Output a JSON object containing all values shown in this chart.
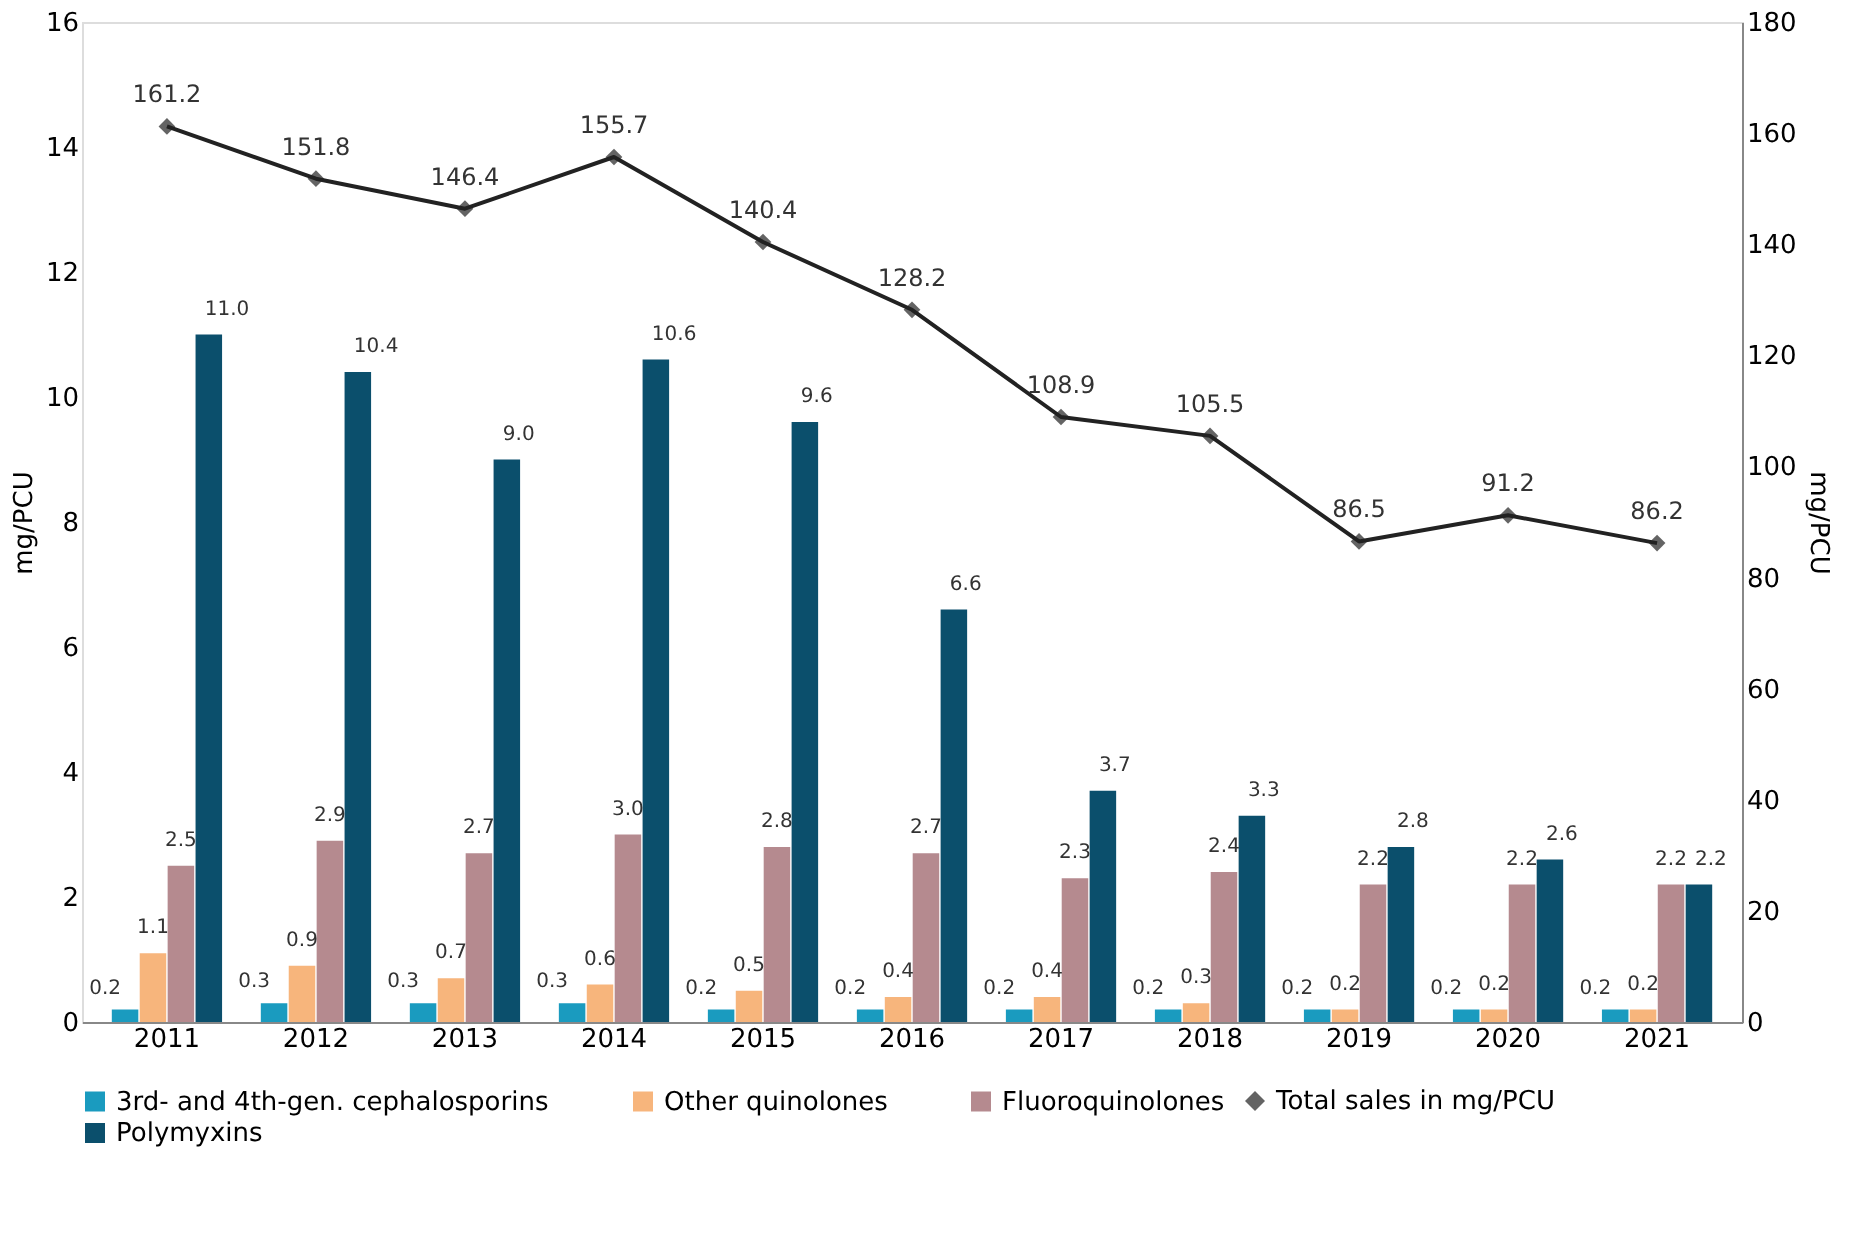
{
  "chart_data": {
    "type": "bar",
    "categories": [
      "2011",
      "2012",
      "2013",
      "2014",
      "2015",
      "2016",
      "2017",
      "2018",
      "2019",
      "2020",
      "2021"
    ],
    "ylabel": "mg/PCU",
    "y2label": "mg/PCU",
    "ylim": [
      0,
      16
    ],
    "yticks": [
      0,
      2,
      4,
      6,
      8,
      10,
      12,
      14,
      16
    ],
    "y2lim": [
      0,
      180
    ],
    "y2ticks": [
      0,
      20,
      40,
      60,
      80,
      100,
      120,
      140,
      160,
      180
    ],
    "grid": false,
    "legend": "bottom",
    "marker": "diamond",
    "line_style": "solid",
    "series": [
      {
        "name": "3rd- and 4th-gen. cephalosporins",
        "color": "#1a9bbf",
        "values": [
          0.2,
          0.3,
          0.3,
          0.3,
          0.2,
          0.2,
          0.2,
          0.2,
          0.2,
          0.2,
          0.2
        ],
        "value_labels": [
          "0.2",
          "0.3",
          "0.3",
          "0.3",
          "0.2",
          "0.2",
          "0.2",
          "0.2",
          "0.2",
          "0.2",
          "0.2"
        ]
      },
      {
        "name": "Other quinolones",
        "color": "#f7b57c",
        "values": [
          1.1,
          0.9,
          0.7,
          0.6,
          0.5,
          0.4,
          0.4,
          0.3,
          0.2,
          0.2,
          0.2
        ],
        "value_labels": [
          "1.1",
          "0.9",
          "0.7",
          "0.6",
          "0.5",
          "0.4",
          "0.4",
          "0.3",
          "0.2",
          "0.2",
          "0.2"
        ]
      },
      {
        "name": "Fluoroquinolones",
        "color": "#b58a8f",
        "values": [
          2.5,
          2.9,
          2.7,
          3.0,
          2.8,
          2.7,
          2.3,
          2.4,
          2.2,
          2.2,
          2.2
        ],
        "value_labels": [
          "2.5",
          "2.9",
          "2.7",
          "3.0",
          "2.8",
          "2.7",
          "2.3",
          "2.4",
          "2.2",
          "2.2",
          "2.2"
        ]
      },
      {
        "name": "Polymyxins",
        "color": "#0b4f6c",
        "values": [
          11.0,
          10.4,
          9.0,
          10.6,
          9.6,
          6.6,
          3.7,
          3.3,
          2.8,
          2.6,
          2.2
        ],
        "value_labels": [
          "11.0",
          "10.4",
          "9.0",
          "10.6",
          "9.6",
          "6.6",
          "3.7",
          "3.3",
          "2.8",
          "2.6",
          "2.2"
        ]
      },
      {
        "name": "Total sales in mg/PCU",
        "type": "line",
        "axis": "y2",
        "color": "#222222",
        "values": [
          161.2,
          151.8,
          146.4,
          155.7,
          140.4,
          128.2,
          108.9,
          105.5,
          86.5,
          91.2,
          86.2
        ],
        "value_labels": [
          "161.2",
          "151.8",
          "146.4",
          "155.7",
          "140.4",
          "128.2",
          "108.9",
          "105.5",
          "86.5",
          "91.2",
          "86.2"
        ]
      }
    ]
  }
}
